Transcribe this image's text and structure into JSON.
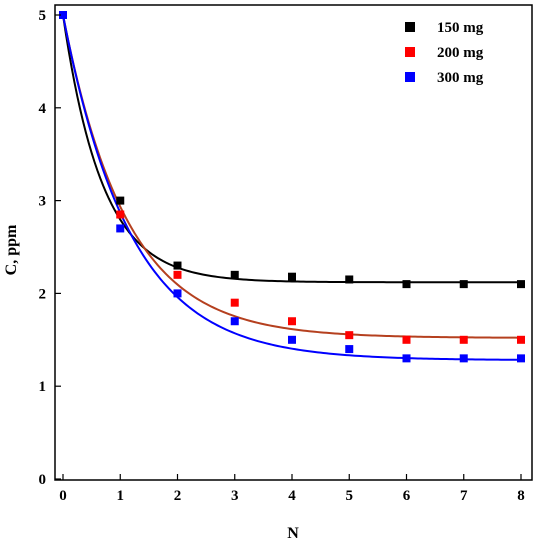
{
  "chart_data": {
    "type": "scatter",
    "xlabel": "N",
    "ylabel": "C, ppm",
    "xlim": [
      0,
      8
    ],
    "ylim": [
      0,
      5
    ],
    "x_ticks": [
      0,
      1,
      2,
      3,
      4,
      5,
      6,
      7,
      8
    ],
    "y_ticks": [
      0,
      1,
      2,
      3,
      4,
      5
    ],
    "grid": false,
    "legend_position": "top-right",
    "series": [
      {
        "name": "150 mg",
        "color": "#000000",
        "x": [
          0,
          1,
          2,
          3,
          4,
          5,
          6,
          7,
          8
        ],
        "y": [
          5.0,
          3.0,
          2.3,
          2.2,
          2.18,
          2.15,
          2.1,
          2.1,
          2.1
        ],
        "fit_curve": {
          "asymptote": 2.12,
          "initial": 5.0,
          "rate": 1.45
        }
      },
      {
        "name": "200 mg",
        "color": "#ff0000",
        "x": [
          0,
          1,
          2,
          3,
          4,
          5,
          6,
          7,
          8
        ],
        "y": [
          5.0,
          2.85,
          2.2,
          1.9,
          1.7,
          1.55,
          1.5,
          1.5,
          1.5
        ],
        "fit_curve": {
          "asymptote": 1.52,
          "initial": 5.0,
          "rate": 0.9
        },
        "fit_color": "#b5401f"
      },
      {
        "name": "300 mg",
        "color": "#0000ff",
        "x": [
          0,
          1,
          2,
          3,
          4,
          5,
          6,
          7,
          8
        ],
        "y": [
          5.0,
          2.7,
          2.0,
          1.7,
          1.5,
          1.4,
          1.3,
          1.3,
          1.3
        ],
        "fit_curve": {
          "asymptote": 1.28,
          "initial": 5.0,
          "rate": 0.85
        }
      }
    ]
  }
}
